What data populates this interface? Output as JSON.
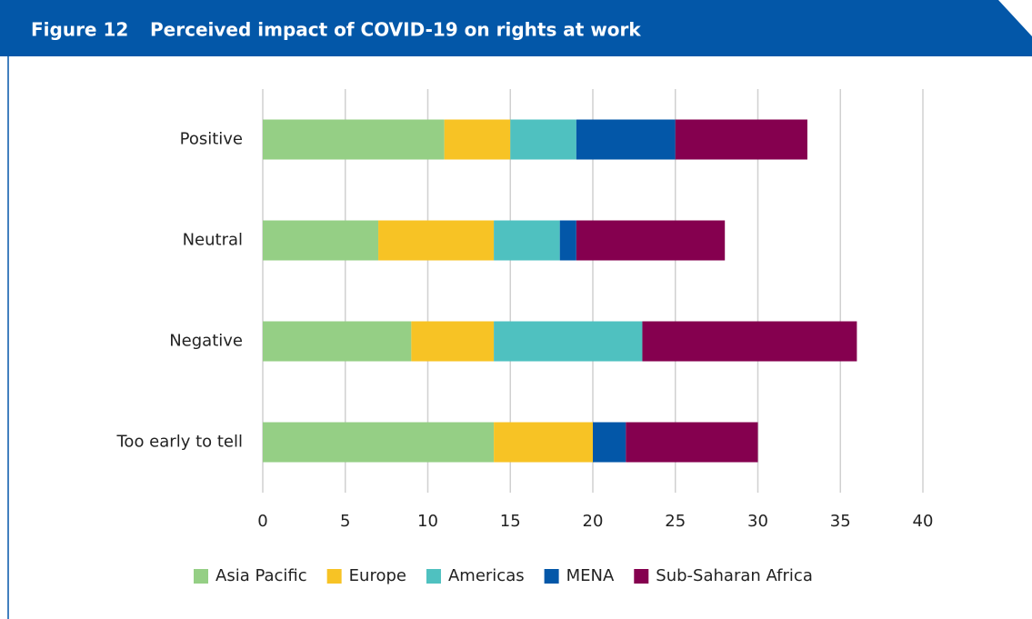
{
  "chart_data": {
    "type": "stacked_barh",
    "figure_label": "Figure 12",
    "title": "Perceived impact of COVID-19 on rights at work",
    "categories": [
      "Positive",
      "Neutral",
      "Negative",
      "Too  early to tell"
    ],
    "series": [
      {
        "name": "Asia Pacific",
        "color": "#95cf85",
        "values": [
          11,
          7,
          9,
          14
        ]
      },
      {
        "name": "Europe",
        "color": "#f7c325",
        "values": [
          4,
          7,
          5,
          6
        ]
      },
      {
        "name": "Americas",
        "color": "#4fc1c0",
        "values": [
          4,
          4,
          9,
          0
        ]
      },
      {
        "name": "MENA",
        "color": "#0357a8",
        "values": [
          6,
          1,
          0,
          2
        ]
      },
      {
        "name": "Sub-Saharan Africa",
        "color": "#85004f",
        "values": [
          8,
          9,
          13,
          8
        ]
      }
    ],
    "xlim": [
      0,
      40
    ],
    "xticks": [
      0,
      5,
      10,
      15,
      20,
      25,
      30,
      35,
      40
    ],
    "grid": true,
    "legend": "bottom"
  }
}
